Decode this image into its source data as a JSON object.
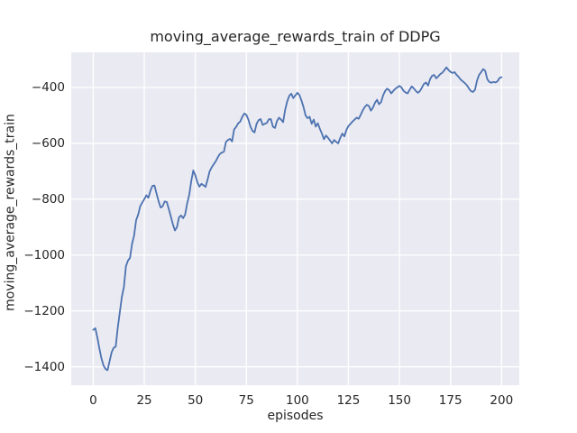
{
  "title": "moving_average_rewards_train of DDPG",
  "chart_data": {
    "type": "line",
    "title": "moving_average_rewards_train of DDPG",
    "xlabel": "episodes",
    "ylabel": "moving_average_rewards_train",
    "legend": null,
    "grid": true,
    "xlim": [
      -10.8,
      208.7
    ],
    "ylim": [
      -1466,
      -274
    ],
    "x_ticks": [
      0,
      25,
      50,
      75,
      100,
      125,
      150,
      175,
      200
    ],
    "x_tick_labels": [
      "0",
      "25",
      "50",
      "75",
      "100",
      "125",
      "150",
      "175",
      "200"
    ],
    "y_ticks": [
      -400,
      -600,
      -800,
      -1000,
      -1200,
      -1400
    ],
    "y_tick_labels": [
      "−400",
      "−600",
      "−800",
      "−1000",
      "−1200",
      "−1400"
    ],
    "style": {
      "figure_background": "#ffffff",
      "axes_background": "#eaeaf2",
      "grid_color": "#ffffff",
      "line_color": "#4c72b0",
      "text_color": "#262626",
      "line_width": 1.8
    },
    "x": [
      0,
      1,
      2,
      3,
      4,
      5,
      6,
      7,
      8,
      9,
      10,
      11,
      12,
      13,
      14,
      15,
      16,
      17,
      18,
      19,
      20,
      21,
      22,
      23,
      24,
      25,
      26,
      27,
      28,
      29,
      30,
      31,
      32,
      33,
      34,
      35,
      36,
      37,
      38,
      39,
      40,
      41,
      42,
      43,
      44,
      45,
      46,
      47,
      48,
      49,
      50,
      51,
      52,
      53,
      54,
      55,
      56,
      57,
      58,
      59,
      60,
      61,
      62,
      63,
      64,
      65,
      66,
      67,
      68,
      69,
      70,
      71,
      72,
      73,
      74,
      75,
      76,
      77,
      78,
      79,
      80,
      81,
      82,
      83,
      84,
      85,
      86,
      87,
      88,
      89,
      90,
      91,
      92,
      93,
      94,
      95,
      96,
      97,
      98,
      99,
      100,
      101,
      102,
      103,
      104,
      105,
      106,
      107,
      108,
      109,
      110,
      111,
      112,
      113,
      114,
      115,
      116,
      117,
      118,
      119,
      120,
      121,
      122,
      123,
      124,
      125,
      126,
      127,
      128,
      129,
      130,
      131,
      132,
      133,
      134,
      135,
      136,
      137,
      138,
      139,
      140,
      141,
      142,
      143,
      144,
      145,
      146,
      147,
      148,
      149,
      150,
      151,
      152,
      153,
      154,
      155,
      156,
      157,
      158,
      159,
      160,
      161,
      162,
      163,
      164,
      165,
      166,
      167,
      168,
      169,
      170,
      171,
      172,
      173,
      174,
      175,
      176,
      177,
      178,
      179,
      180,
      181,
      182,
      183,
      184,
      185,
      186,
      187,
      188,
      189,
      190,
      191,
      192,
      193,
      194,
      195,
      196,
      197,
      198,
      199,
      200
    ],
    "y": [
      -1268,
      -1262,
      -1295,
      -1335,
      -1370,
      -1395,
      -1408,
      -1412,
      -1380,
      -1348,
      -1332,
      -1328,
      -1260,
      -1205,
      -1150,
      -1115,
      -1040,
      -1020,
      -1010,
      -960,
      -930,
      -875,
      -855,
      -825,
      -812,
      -800,
      -786,
      -795,
      -770,
      -752,
      -751,
      -780,
      -807,
      -830,
      -825,
      -808,
      -810,
      -835,
      -862,
      -890,
      -912,
      -900,
      -865,
      -858,
      -868,
      -855,
      -815,
      -785,
      -735,
      -697,
      -715,
      -740,
      -755,
      -745,
      -750,
      -756,
      -730,
      -700,
      -686,
      -675,
      -664,
      -650,
      -638,
      -633,
      -630,
      -595,
      -588,
      -584,
      -593,
      -550,
      -541,
      -528,
      -522,
      -505,
      -493,
      -498,
      -515,
      -540,
      -555,
      -561,
      -530,
      -517,
      -513,
      -534,
      -530,
      -527,
      -514,
      -513,
      -540,
      -545,
      -520,
      -508,
      -515,
      -524,
      -480,
      -450,
      -430,
      -422,
      -438,
      -428,
      -419,
      -427,
      -447,
      -470,
      -500,
      -510,
      -505,
      -530,
      -515,
      -540,
      -528,
      -548,
      -565,
      -585,
      -572,
      -580,
      -590,
      -600,
      -588,
      -595,
      -600,
      -580,
      -565,
      -575,
      -552,
      -538,
      -530,
      -522,
      -515,
      -508,
      -512,
      -498,
      -482,
      -470,
      -462,
      -466,
      -483,
      -472,
      -455,
      -444,
      -460,
      -452,
      -428,
      -412,
      -404,
      -410,
      -421,
      -412,
      -404,
      -399,
      -394,
      -400,
      -412,
      -418,
      -421,
      -408,
      -396,
      -403,
      -412,
      -419,
      -413,
      -400,
      -387,
      -382,
      -393,
      -370,
      -358,
      -355,
      -367,
      -360,
      -352,
      -347,
      -338,
      -328,
      -337,
      -344,
      -348,
      -345,
      -355,
      -362,
      -372,
      -378,
      -384,
      -392,
      -403,
      -413,
      -416,
      -408,
      -375,
      -355,
      -345,
      -334,
      -340,
      -370,
      -380,
      -383,
      -380,
      -382,
      -378,
      -366,
      -363
    ]
  }
}
